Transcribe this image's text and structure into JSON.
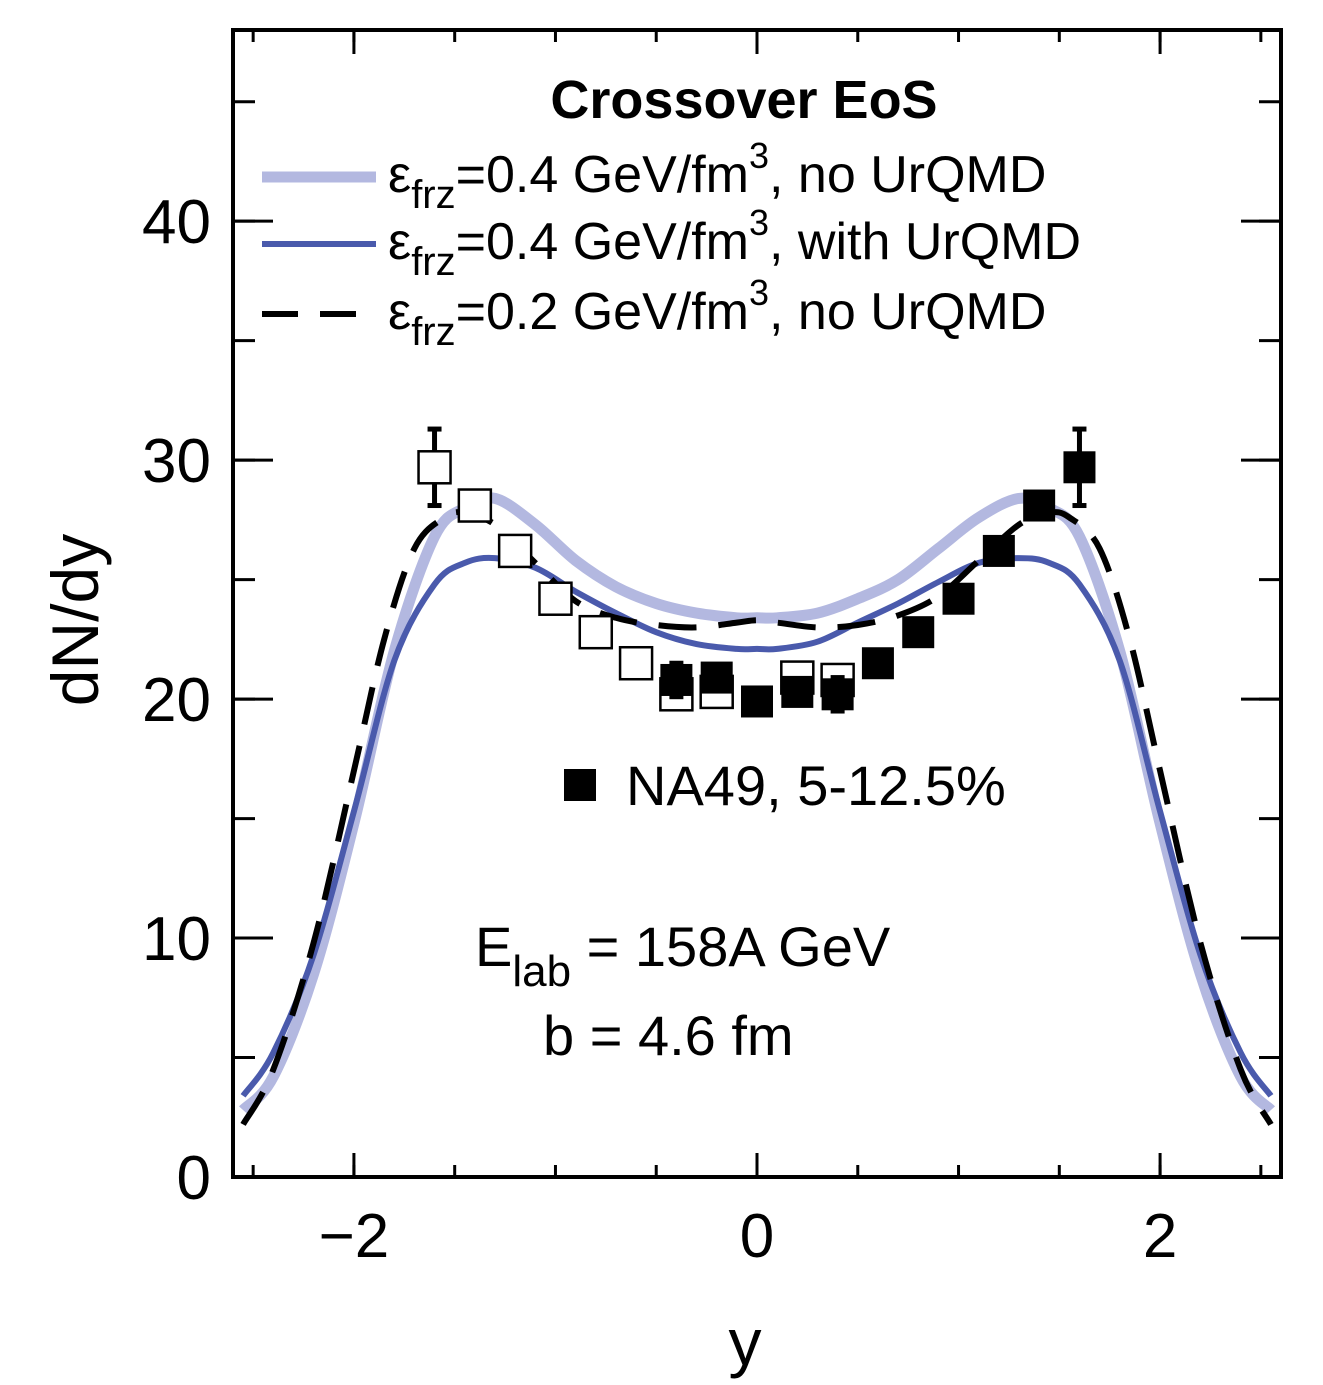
{
  "chart_data": {
    "type": "line",
    "title": "Crossover EoS",
    "xlabel": "y",
    "ylabel": "dN/dy",
    "xlim": [
      -2.6,
      2.6
    ],
    "ylim": [
      0,
      48
    ],
    "x_ticks": [
      {
        "value": -2,
        "label": "−2"
      },
      {
        "value": 0,
        "label": "0"
      },
      {
        "value": 2,
        "label": "2"
      }
    ],
    "y_ticks": [
      {
        "value": 0,
        "label": "0"
      },
      {
        "value": 10,
        "label": "10"
      },
      {
        "value": 20,
        "label": "20"
      },
      {
        "value": 30,
        "label": "30"
      },
      {
        "value": 40,
        "label": "40"
      }
    ],
    "x_minor_step": 0.5,
    "y_minor_step": 5,
    "series": [
      {
        "name": "εfrz=0.4 GeV/fm3, no UrQMD",
        "legend": {
          "symbol": "ε",
          "sub": "frz",
          "text1": "=0.4 GeV/fm",
          "sup": "3",
          "text2": ", no UrQMD"
        },
        "color": "#b3b8e0",
        "style": "solid",
        "x": [
          -2.55,
          -2.4,
          -2.2,
          -2.0,
          -1.8,
          -1.6,
          -1.45,
          -1.3,
          -1.1,
          -0.9,
          -0.7,
          -0.5,
          -0.3,
          -0.1,
          0,
          0.1,
          0.3,
          0.5,
          0.7,
          0.9,
          1.1,
          1.3,
          1.45,
          1.6,
          1.8,
          2.0,
          2.2,
          2.4,
          2.55
        ],
        "y": [
          2.8,
          4.2,
          8.5,
          14.8,
          22.0,
          26.8,
          28.0,
          28.4,
          27.3,
          25.8,
          24.7,
          24.0,
          23.6,
          23.4,
          23.4,
          23.4,
          23.6,
          24.2,
          25.0,
          26.3,
          27.6,
          28.4,
          28.0,
          26.8,
          22.0,
          14.8,
          8.5,
          4.2,
          2.8
        ]
      },
      {
        "name": "εfrz=0.4 GeV/fm3, with UrQMD",
        "legend": {
          "symbol": "ε",
          "sub": "frz",
          "text1": "=0.4 GeV/fm",
          "sup": "3",
          "text2": ", with UrQMD"
        },
        "color": "#4a5aac",
        "style": "solid",
        "x": [
          -2.55,
          -2.4,
          -2.2,
          -2.0,
          -1.8,
          -1.6,
          -1.45,
          -1.3,
          -1.1,
          -0.9,
          -0.7,
          -0.5,
          -0.3,
          -0.1,
          0,
          0.1,
          0.3,
          0.5,
          0.7,
          0.9,
          1.1,
          1.3,
          1.45,
          1.6,
          1.8,
          2.0,
          2.2,
          2.4,
          2.55
        ],
        "y": [
          3.4,
          5.2,
          9.3,
          15.3,
          21.6,
          24.8,
          25.7,
          25.9,
          25.5,
          24.5,
          23.6,
          22.8,
          22.3,
          22.1,
          22.1,
          22.1,
          22.4,
          23.2,
          24.0,
          24.9,
          25.7,
          25.9,
          25.7,
          24.8,
          21.6,
          15.3,
          9.3,
          5.2,
          3.4
        ]
      },
      {
        "name": "εfrz=0.2 GeV/fm3, no UrQMD",
        "legend": {
          "symbol": "ε",
          "sub": "frz",
          "text1": "=0.2 GeV/fm",
          "sup": "3",
          "text2": ", no UrQMD"
        },
        "color": "#000000",
        "style": "dashed",
        "x": [
          -2.55,
          -2.4,
          -2.2,
          -2.0,
          -1.85,
          -1.7,
          -1.55,
          -1.45,
          -1.3,
          -1.1,
          -0.9,
          -0.7,
          -0.5,
          -0.3,
          -0.1,
          0,
          0.1,
          0.3,
          0.5,
          0.7,
          0.9,
          1.1,
          1.3,
          1.45,
          1.55,
          1.7,
          1.85,
          2.0,
          2.2,
          2.4,
          2.55
        ],
        "y": [
          2.2,
          4.5,
          9.8,
          17.0,
          22.5,
          26.3,
          27.6,
          27.8,
          27.3,
          25.7,
          24.1,
          23.4,
          23.1,
          23.0,
          23.2,
          23.3,
          23.2,
          23.0,
          23.1,
          23.5,
          24.3,
          25.8,
          27.3,
          27.8,
          27.6,
          26.3,
          22.5,
          17.0,
          9.8,
          4.5,
          2.2
        ]
      }
    ],
    "data_points": {
      "name": "NA49, 5-12.5%",
      "measured": [
        {
          "x": -0.4,
          "y": 20.8,
          "err": 0.7
        },
        {
          "x": -0.2,
          "y": 20.9,
          "err": 0
        },
        {
          "x": -0.0,
          "y": 19.9,
          "err": 0
        },
        {
          "x": 0.2,
          "y": 20.3,
          "err": 0
        },
        {
          "x": 0.4,
          "y": 20.2,
          "err": 0.7
        },
        {
          "x": 0.6,
          "y": 21.5,
          "err": 0
        },
        {
          "x": 0.8,
          "y": 22.8,
          "err": 0
        },
        {
          "x": 1.0,
          "y": 24.2,
          "err": 0
        },
        {
          "x": 1.2,
          "y": 26.2,
          "err": 0
        },
        {
          "x": 1.4,
          "y": 28.1,
          "err": 0
        },
        {
          "x": 1.6,
          "y": 29.7,
          "err": 1.6
        }
      ],
      "reflected": [
        {
          "x": -1.6,
          "y": 29.7,
          "err": 1.6
        },
        {
          "x": -1.4,
          "y": 28.1,
          "err": 0
        },
        {
          "x": -1.2,
          "y": 26.2,
          "err": 0
        },
        {
          "x": -1.0,
          "y": 24.2,
          "err": 0
        },
        {
          "x": -0.8,
          "y": 22.8,
          "err": 0
        },
        {
          "x": -0.6,
          "y": 21.5,
          "err": 0
        },
        {
          "x": -0.4,
          "y": 20.2,
          "err": 0
        },
        {
          "x": -0.2,
          "y": 20.3,
          "err": 0
        },
        {
          "x": 0.2,
          "y": 20.9,
          "err": 0
        },
        {
          "x": 0.4,
          "y": 20.8,
          "err": 0
        }
      ]
    },
    "annotations": {
      "elab_main": "E",
      "elab_sub": "lab",
      "elab_rest": " = 158A GeV",
      "impact": "b = 4.6 fm"
    }
  }
}
